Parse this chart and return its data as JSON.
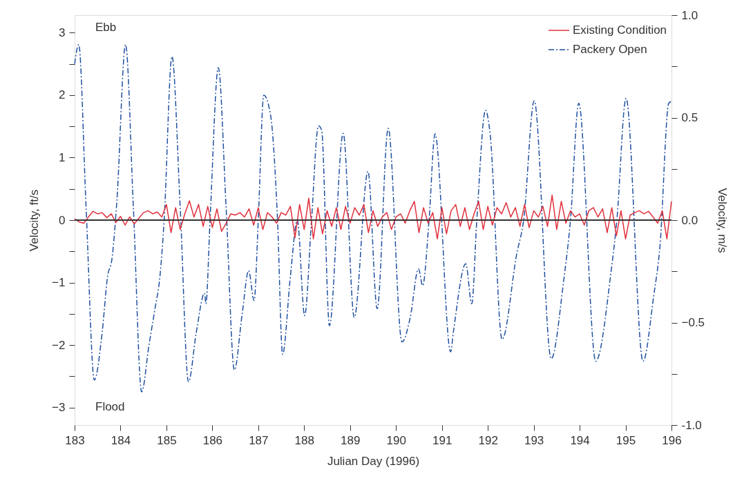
{
  "chart_data": {
    "type": "line",
    "xlabel": "Julian Day (1996)",
    "ylabel": "Velocity, ft/s",
    "y2label": "Velocity, m/s",
    "annotations": [
      "Ebb",
      "Flood"
    ],
    "legend": "top right",
    "xlim": [
      183,
      196
    ],
    "xticks": [
      183,
      184,
      185,
      186,
      187,
      188,
      189,
      190,
      191,
      192,
      193,
      194,
      195,
      196
    ],
    "ylim": [
      -3.28084,
      3.28084
    ],
    "yticks": [
      -3,
      {
        "value": -2.5,
        "label": null
      },
      -2,
      {
        "value": -1.5,
        "label": null
      },
      -1,
      {
        "value": -0.5,
        "label": null
      },
      0,
      {
        "value": 0.5,
        "label": null
      },
      1,
      {
        "value": 1.5,
        "label": null
      },
      2,
      {
        "value": 2.5,
        "label": null
      },
      3
    ],
    "y2lim": [
      -1,
      1
    ],
    "y2ticks": [
      {
        "value": -1,
        "label": "-1.0"
      },
      {
        "value": -0.75,
        "label": null
      },
      -0.5,
      {
        "value": -0.25,
        "label": null
      },
      {
        "value": 0,
        "label": "0.0"
      },
      {
        "value": 0.25,
        "label": null
      },
      0.5,
      {
        "value": 0.75,
        "label": null
      },
      {
        "value": 1,
        "label": "1.0"
      }
    ],
    "ref_lines": [
      {
        "axis": "y",
        "value": 0,
        "color": "#333333"
      }
    ],
    "series": [
      {
        "name": "Existing Condition",
        "color": "#e0303c",
        "line_style": "solid",
        "x": [
          183.0,
          183.1,
          183.2,
          183.3,
          183.4,
          183.5,
          183.6,
          183.7,
          183.8,
          183.9,
          184.0,
          184.1,
          184.2,
          184.3,
          184.4,
          184.5,
          184.6,
          184.7,
          184.8,
          184.9,
          185.0,
          185.1,
          185.2,
          185.3,
          185.4,
          185.5,
          185.6,
          185.7,
          185.8,
          185.9,
          186.0,
          186.1,
          186.2,
          186.3,
          186.4,
          186.5,
          186.6,
          186.7,
          186.8,
          186.9,
          187.0,
          187.1,
          187.2,
          187.3,
          187.4,
          187.5,
          187.6,
          187.7,
          187.8,
          187.9,
          188.0,
          188.1,
          188.2,
          188.3,
          188.4,
          188.5,
          188.6,
          188.7,
          188.8,
          188.9,
          189.0,
          189.1,
          189.2,
          189.3,
          189.4,
          189.5,
          189.6,
          189.7,
          189.8,
          189.9,
          190.0,
          190.1,
          190.2,
          190.3,
          190.4,
          190.5,
          190.6,
          190.7,
          190.8,
          190.9,
          191.0,
          191.1,
          191.2,
          191.3,
          191.4,
          191.5,
          191.6,
          191.7,
          191.8,
          191.9,
          192.0,
          192.1,
          192.2,
          192.3,
          192.4,
          192.5,
          192.6,
          192.7,
          192.8,
          192.9,
          193.0,
          193.1,
          193.2,
          193.3,
          193.4,
          193.5,
          193.6,
          193.7,
          193.8,
          193.9,
          194.0,
          194.1,
          194.2,
          194.3,
          194.4,
          194.5,
          194.6,
          194.7,
          194.8,
          194.9,
          195.0,
          195.1,
          195.2,
          195.3,
          195.4,
          195.5,
          195.6,
          195.7,
          195.8,
          195.9,
          196.0
        ],
        "values": [
          0.02,
          -0.03,
          -0.05,
          0.05,
          0.14,
          0.1,
          0.12,
          0.04,
          0.1,
          -0.04,
          0.06,
          -0.08,
          0.05,
          -0.06,
          0.03,
          0.12,
          0.15,
          0.1,
          0.13,
          0.05,
          0.25,
          -0.2,
          0.2,
          -0.15,
          0.1,
          0.31,
          0.05,
          0.25,
          -0.1,
          0.22,
          -0.12,
          0.18,
          -0.18,
          -0.05,
          0.1,
          0.08,
          0.12,
          0.05,
          0.18,
          -0.08,
          0.2,
          -0.15,
          0.12,
          0.05,
          -0.05,
          0.12,
          0.08,
          0.22,
          -0.28,
          0.25,
          -0.15,
          0.35,
          -0.3,
          0.2,
          -0.22,
          0.15,
          -0.1,
          0.2,
          -0.15,
          0.22,
          -0.05,
          0.2,
          0.08,
          0.25,
          -0.2,
          0.15,
          -0.1,
          0.05,
          0.12,
          -0.15,
          0.05,
          0.1,
          -0.05,
          0.15,
          0.3,
          -0.2,
          0.2,
          -0.05,
          0.12,
          -0.3,
          0.2,
          -0.22,
          0.15,
          0.25,
          -0.1,
          0.2,
          -0.15,
          0.1,
          0.3,
          -0.15,
          0.22,
          -0.08,
          0.2,
          0.1,
          0.28,
          0.05,
          0.2,
          -0.1,
          0.25,
          -0.12,
          0.15,
          0.05,
          0.22,
          -0.1,
          0.4,
          -0.15,
          0.3,
          -0.05,
          0.15,
          0.05,
          0.1,
          -0.08,
          0.15,
          0.2,
          0.05,
          0.18,
          -0.2,
          0.2,
          -0.25,
          0.15,
          -0.3,
          0.08,
          0.12,
          0.15,
          0.1,
          0.14,
          0.05,
          -0.05,
          0.15,
          -0.3,
          0.3
        ]
      },
      {
        "name": "Packery Open",
        "color": "#1f4fa0",
        "line_style": "dashed",
        "x": [
          183.0,
          183.09,
          183.25,
          183.43,
          183.6,
          183.72,
          183.81,
          183.92,
          184.11,
          184.28,
          184.46,
          184.62,
          184.75,
          184.86,
          184.95,
          185.12,
          185.3,
          185.48,
          185.65,
          185.83,
          185.86,
          185.95,
          186.13,
          186.3,
          186.48,
          186.65,
          186.79,
          186.91,
          187.0,
          187.12,
          187.27,
          187.42,
          187.53,
          187.7,
          187.85,
          188.01,
          188.16,
          188.31,
          188.38,
          188.55,
          188.85,
          189.09,
          189.39,
          189.59,
          189.83,
          190.13,
          190.31,
          190.49,
          190.58,
          190.72,
          190.85,
          191.19,
          191.25,
          191.52,
          191.65,
          191.76,
          191.95,
          192.05,
          192.31,
          192.63,
          192.78,
          193.01,
          193.38,
          193.65,
          193.8,
          193.98,
          194.35,
          194.68,
          194.81,
          195.01,
          195.38,
          195.61,
          195.75,
          195.94,
          196.0
        ],
        "values": [
          2.5,
          2.81,
          0.2,
          -2.56,
          -1.8,
          -0.89,
          -0.64,
          0.3,
          2.81,
          0.2,
          -2.75,
          -2.0,
          -1.42,
          -0.89,
          0.0,
          2.62,
          0.2,
          -2.59,
          -1.8,
          -1.17,
          -1.34,
          0.0,
          2.44,
          0.2,
          -2.4,
          -1.5,
          -0.81,
          -1.29,
          0.0,
          2.0,
          1.67,
          0.0,
          -2.15,
          -0.9,
          0.0,
          -1.53,
          0.0,
          1.51,
          1.44,
          -1.69,
          1.39,
          -1.56,
          0.78,
          -1.42,
          1.47,
          -1.95,
          -1.56,
          -0.78,
          -1.05,
          0.0,
          1.38,
          -2.11,
          -1.79,
          -0.7,
          -1.34,
          0.0,
          1.76,
          1.38,
          -1.91,
          -0.54,
          0.0,
          1.91,
          -2.22,
          -0.98,
          0.0,
          1.87,
          -2.26,
          -0.85,
          0.0,
          1.95,
          -2.26,
          -1.23,
          -0.41,
          1.87,
          1.9
        ]
      }
    ]
  }
}
